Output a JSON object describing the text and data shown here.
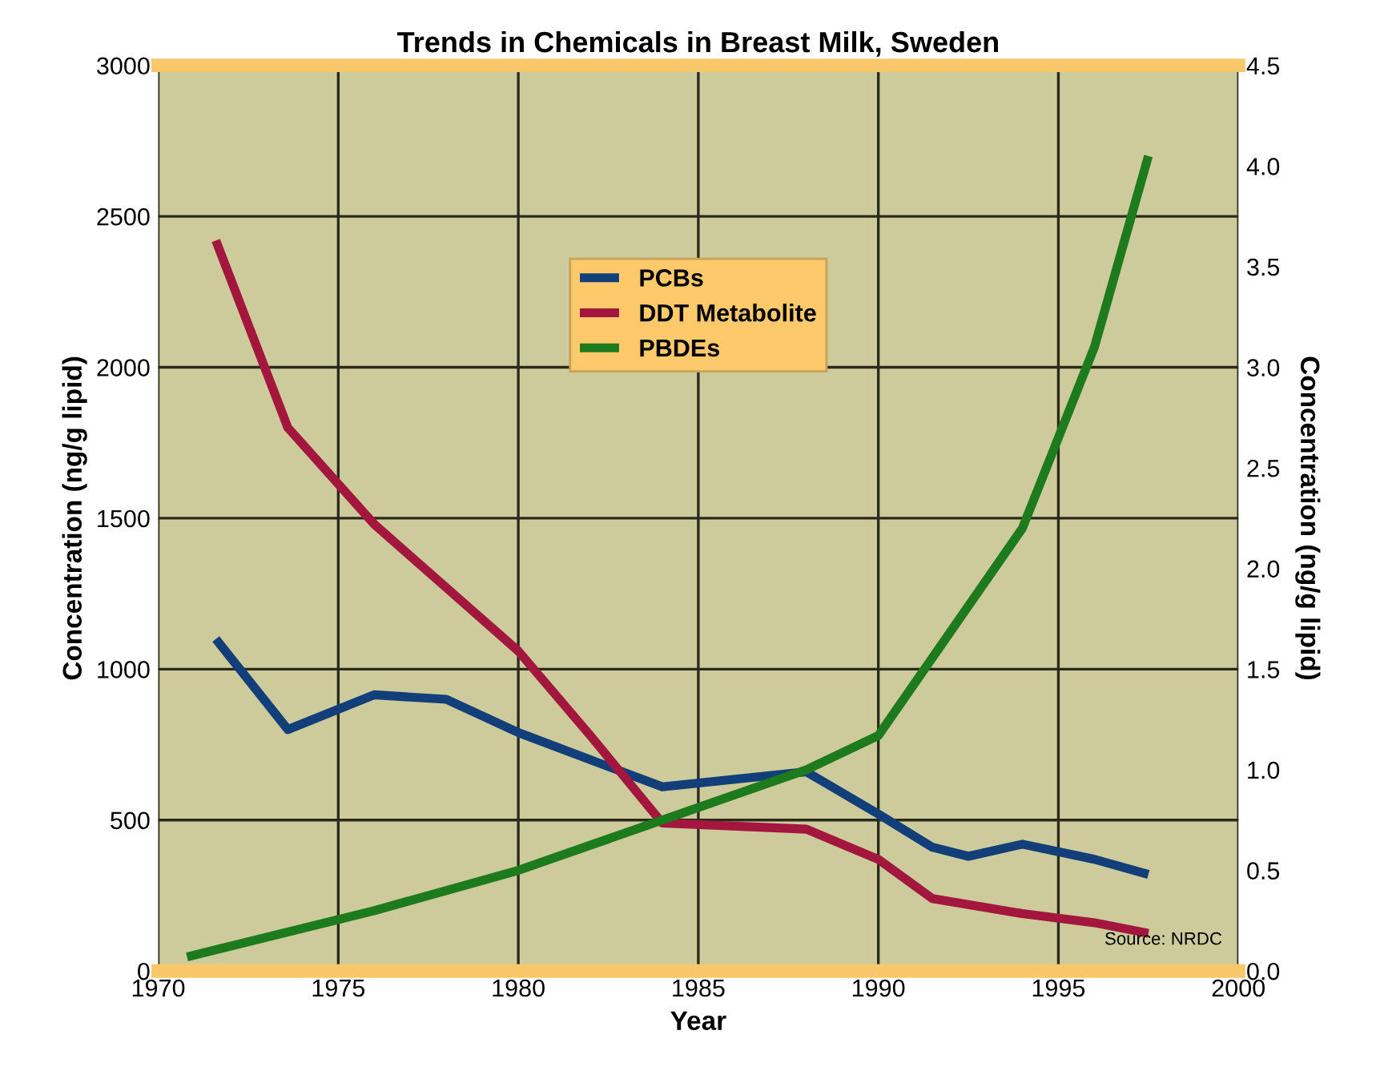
{
  "chart_data": {
    "type": "line",
    "title": "Trends in Chemicals in Breast Milk, Sweden",
    "xlabel": "Year",
    "ylabel": "Concentration (ng/g lipid)",
    "y2label": "Concentration (ng/g lipid)",
    "xlim": [
      1970,
      2000
    ],
    "xticks": [
      1970,
      1975,
      1980,
      1985,
      1990,
      1995,
      2000
    ],
    "ylim": [
      0,
      3000
    ],
    "yticks": [
      0,
      500,
      1000,
      1500,
      2000,
      2500,
      3000
    ],
    "y2lim": [
      0,
      4.5
    ],
    "y2ticks": [
      {
        "value": 0,
        "label": "0.0"
      },
      {
        "value": 0.5,
        "label": "0.5"
      },
      {
        "value": 1,
        "label": "1.0"
      },
      {
        "value": 1.5,
        "label": "1.5"
      },
      {
        "value": 2,
        "label": "2.0"
      },
      {
        "value": 2.5,
        "label": "2.5"
      },
      {
        "value": 3,
        "label": "3.0"
      },
      {
        "value": 3.5,
        "label": "3.5"
      },
      {
        "value": 4,
        "label": "4.0"
      },
      {
        "value": 4.5,
        "label": "4.5"
      }
    ],
    "grid": true,
    "legend": "top",
    "annotations": [
      "Source: NRDC"
    ],
    "series": [
      {
        "name": "PCBs",
        "color": "#123f7a",
        "x": [
          1971.6,
          1973.6,
          1976,
          1978,
          1980,
          1984,
          1988,
          1990,
          1991.5,
          1992.5,
          1994,
          1996,
          1997.5
        ],
        "values": [
          1100,
          800,
          915,
          900,
          790,
          610,
          660,
          520,
          410,
          380,
          420,
          370,
          320
        ]
      },
      {
        "name": "DDT Metabolite",
        "color": "#a3173f",
        "x": [
          1971.6,
          1973.6,
          1976,
          1978,
          1980,
          1982,
          1984,
          1988,
          1990,
          1991.5,
          1994,
          1996,
          1997.5
        ],
        "values": [
          2420,
          1800,
          1480,
          1270,
          1060,
          780,
          490,
          470,
          370,
          240,
          190,
          160,
          125
        ]
      },
      {
        "name": "PBDEs",
        "color": "#1d7a1d",
        "axis": "y2",
        "x": [
          1970.8,
          1976,
          1980,
          1984,
          1988,
          1990,
          1994,
          1996,
          1997.5
        ],
        "values": [
          0.07,
          0.3,
          0.5,
          0.75,
          1.0,
          1.17,
          2.2,
          3.1,
          4.05
        ]
      }
    ]
  }
}
